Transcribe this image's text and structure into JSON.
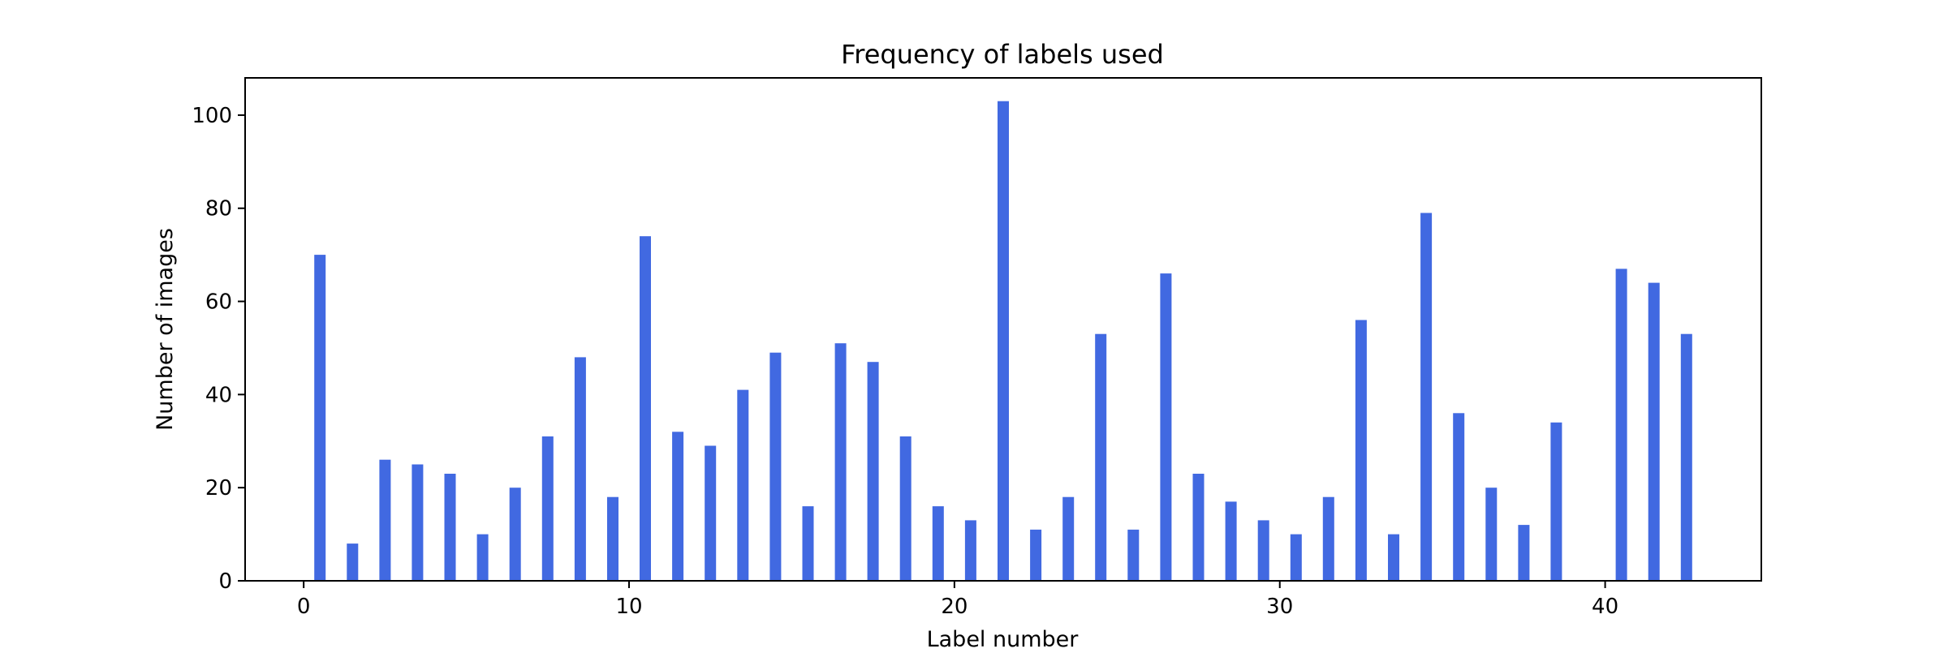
{
  "chart_data": {
    "type": "bar",
    "title": "Frequency of labels used",
    "xlabel": "Label number",
    "ylabel": "Number of images",
    "x": [
      0,
      1,
      2,
      3,
      4,
      5,
      6,
      7,
      8,
      9,
      10,
      11,
      12,
      13,
      14,
      15,
      16,
      17,
      18,
      19,
      20,
      21,
      22,
      23,
      24,
      25,
      26,
      27,
      28,
      29,
      30,
      31,
      32,
      33,
      34,
      35,
      36,
      37,
      38,
      39,
      40,
      41,
      42
    ],
    "values": [
      70,
      8,
      26,
      25,
      23,
      10,
      20,
      31,
      48,
      18,
      74,
      32,
      29,
      41,
      49,
      16,
      51,
      47,
      31,
      16,
      13,
      103,
      11,
      18,
      53,
      11,
      66,
      23,
      17,
      13,
      10,
      18,
      56,
      10,
      79,
      36,
      20,
      12,
      34,
      0,
      67,
      64,
      53
    ],
    "bar_offset": 0.5,
    "bar_width": 0.35,
    "xlim": [
      -1.8,
      44.8
    ],
    "ylim": [
      0,
      108
    ],
    "xticks": [
      0,
      10,
      20,
      30,
      40
    ],
    "yticks": [
      0,
      20,
      40,
      60,
      80,
      100
    ],
    "grid": false,
    "bar_color": "#4169e1"
  }
}
